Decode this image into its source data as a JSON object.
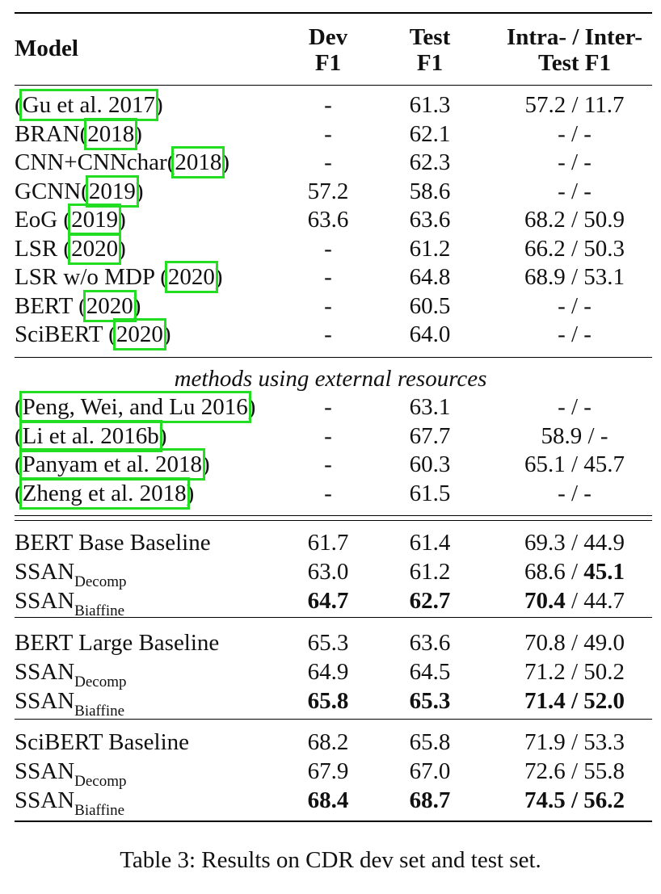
{
  "header": {
    "model": "Model",
    "dev_line1": "Dev",
    "dev_line2": "F1",
    "test_line1": "Test",
    "test_line2": "F1",
    "it_line1": "Intra- / Inter-",
    "it_line2": "Test F1"
  },
  "group1": [
    {
      "pre": "(",
      "cite": "Gu et al. 2017",
      "post": ")",
      "dev": "-",
      "test": "61.3",
      "it": "57.2 / 11.7"
    },
    {
      "pre": "BRAN(",
      "cite": "2018",
      "post": ")",
      "dev": "-",
      "test": "62.1",
      "it": "- / -"
    },
    {
      "pre": "CNN+CNNchar(",
      "cite": "2018",
      "post": ")",
      "dev": "-",
      "test": "62.3",
      "it": "- / -"
    },
    {
      "pre": "GCNN(",
      "cite": "2019",
      "post": ")",
      "dev": "57.2",
      "test": "58.6",
      "it": "- / -"
    },
    {
      "pre": "EoG (",
      "cite": "2019",
      "post": ")",
      "dev": "63.6",
      "test": "63.6",
      "it": "68.2 / 50.9"
    },
    {
      "pre": "LSR (",
      "cite": "2020",
      "post": ")",
      "dev": "-",
      "test": "61.2",
      "it": "66.2 / 50.3"
    },
    {
      "pre": "LSR w/o MDP (",
      "cite": "2020",
      "post": ")",
      "dev": "-",
      "test": "64.8",
      "it": "68.9 / 53.1"
    },
    {
      "pre": "BERT (",
      "cite": "2020",
      "post": ")",
      "dev": "-",
      "test": "60.5",
      "it": "- / -"
    },
    {
      "pre": "SciBERT (",
      "cite": "2020",
      "post": ")",
      "dev": "-",
      "test": "64.0",
      "it": "- / -"
    }
  ],
  "section_title": "methods using external resources",
  "group2": [
    {
      "pre": "(",
      "cite": "Peng, Wei, and Lu 2016",
      "post": ")",
      "dev": "-",
      "test": "63.1",
      "it": "- / -"
    },
    {
      "pre": "(",
      "cite": "Li et al. 2016b",
      "post": ")",
      "dev": "-",
      "test": "67.7",
      "it": "58.9 / -"
    },
    {
      "pre": "(",
      "cite": "Panyam et al. 2018",
      "post": ")",
      "dev": "-",
      "test": "60.3",
      "it": "65.1 / 45.7"
    },
    {
      "pre": "(",
      "cite": "Zheng et al. 2018",
      "post": ")",
      "dev": "-",
      "test": "61.5",
      "it": "- / -"
    }
  ],
  "bert_base": [
    {
      "name": "BERT Base Baseline",
      "dev": "61.7",
      "test": "61.4",
      "intra": "69.3",
      "inter": "44.9"
    },
    {
      "name": "SSAN",
      "sub": "Decomp",
      "dev": "63.0",
      "test": "61.2",
      "intra": "68.6",
      "inter": "45.1"
    },
    {
      "name": "SSAN",
      "sub": "Biaffine",
      "dev": "64.7",
      "test": "62.7",
      "intra": "70.4",
      "inter": "44.7"
    }
  ],
  "bert_large": [
    {
      "name": "BERT Large Baseline",
      "dev": "65.3",
      "test": "63.6",
      "intra": "70.8",
      "inter": "49.0"
    },
    {
      "name": "SSAN",
      "sub": "Decomp",
      "dev": "64.9",
      "test": "64.5",
      "intra": "71.2",
      "inter": "50.2"
    },
    {
      "name": "SSAN",
      "sub": "Biaffine",
      "dev": "65.8",
      "test": "65.3",
      "intra": "71.4",
      "inter": "52.0"
    }
  ],
  "scibert": [
    {
      "name": "SciBERT Baseline",
      "dev": "68.2",
      "test": "65.8",
      "intra": "71.9",
      "inter": "53.3"
    },
    {
      "name": "SSAN",
      "sub": "Decomp",
      "dev": "67.9",
      "test": "67.0",
      "intra": "72.6",
      "inter": "55.8"
    },
    {
      "name": "SSAN",
      "sub": "Biaffine",
      "dev": "68.4",
      "test": "68.7",
      "intra": "74.5",
      "inter": "56.2"
    }
  ],
  "slash": " / ",
  "caption": "Table 3: Results on CDR dev set and test set."
}
